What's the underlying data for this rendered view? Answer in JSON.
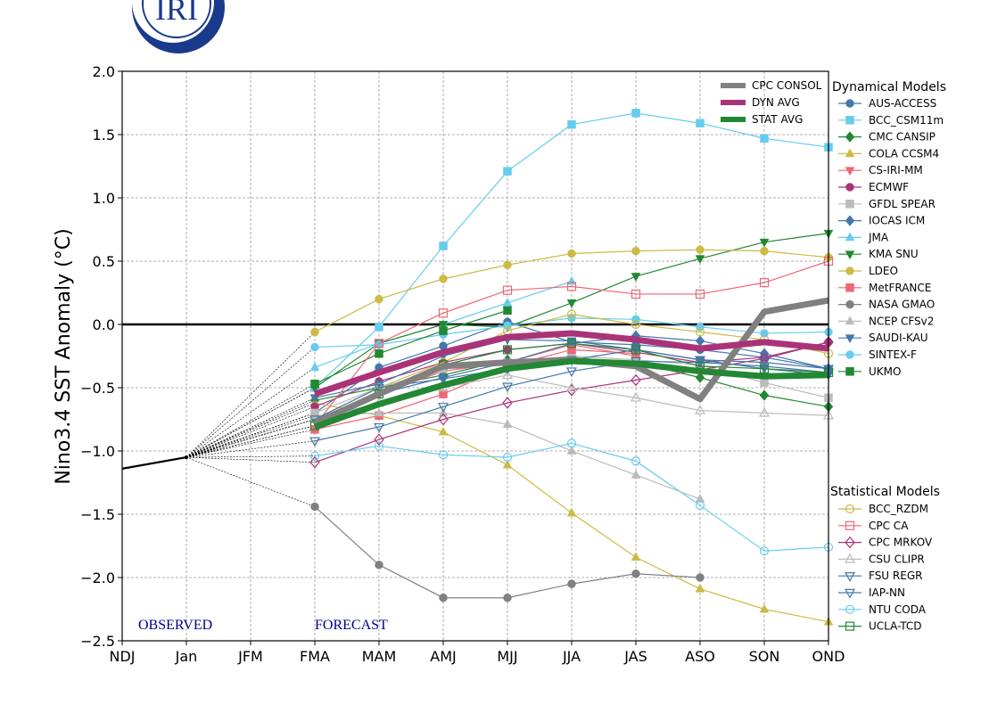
{
  "logo": {
    "text": "IRI",
    "color": "#1a3a8c"
  },
  "chart_data": {
    "type": "line",
    "ylabel": "Nino3.4 SST Anomaly (°C)",
    "xlabel": "",
    "categories": [
      "NDJ",
      "Jan",
      "JFM",
      "FMA",
      "MAM",
      "AMJ",
      "MJJ",
      "JJA",
      "JAS",
      "ASO",
      "SON",
      "OND"
    ],
    "ylim": [
      -2.5,
      2.0
    ],
    "yticks": [
      2.0,
      1.5,
      1.0,
      0.5,
      0.0,
      -0.5,
      -1.0,
      -1.5,
      -2.0,
      -2.5
    ],
    "ytick_labels": [
      "2.0",
      "1.5",
      "1.0",
      "0.5",
      "0.0",
      "−0.5",
      "−1.0",
      "−1.5",
      "−2.0",
      "−2.5"
    ],
    "grid": true,
    "annotations": {
      "observed": "OBSERVED",
      "forecast": "FORECAST"
    },
    "observed": {
      "categories": [
        "NDJ",
        "Jan"
      ],
      "values": [
        -1.14,
        -1.05
      ],
      "color": "#000000"
    },
    "forecast_start": "FMA",
    "averages_legend_placement": "top-right",
    "averages": [
      {
        "name": "CPC CONSOL",
        "color": "#808080",
        "values": [
          -0.78,
          -0.55,
          -0.33,
          -0.3,
          -0.28,
          -0.33,
          -0.59,
          0.1,
          0.19
        ]
      },
      {
        "name": "DYN AVG",
        "color": "#aa3377",
        "values": [
          -0.55,
          -0.38,
          -0.22,
          -0.1,
          -0.07,
          -0.12,
          -0.19,
          -0.14,
          -0.19
        ]
      },
      {
        "name": "STAT AVG",
        "color": "#228833",
        "values": [
          -0.81,
          -0.63,
          -0.48,
          -0.35,
          -0.29,
          -0.31,
          -0.37,
          -0.41,
          -0.4
        ]
      }
    ],
    "dynamical_title": "Dynamical Models",
    "dynamical": [
      {
        "name": "AUS-ACCESS",
        "color": "#4477aa",
        "marker": "circle",
        "filled": true,
        "values": [
          -0.7,
          -0.34,
          -0.17,
          0.02,
          -0.14,
          -0.16,
          -0.2,
          -0.26,
          -0.35
        ]
      },
      {
        "name": "BCC_CSM11m",
        "color": "#66ccee",
        "marker": "square",
        "filled": true,
        "values": [
          -0.5,
          -0.02,
          0.62,
          1.21,
          1.58,
          1.67,
          1.59,
          1.47,
          1.4
        ]
      },
      {
        "name": "CMC CANSIP",
        "color": "#228833",
        "marker": "diamond",
        "filled": true,
        "values": [
          -0.6,
          -0.5,
          -0.4,
          -0.28,
          -0.27,
          -0.3,
          -0.42,
          -0.56,
          -0.65
        ]
      },
      {
        "name": "COLA CCSM4",
        "color": "#ccbb44",
        "marker": "triangle-up",
        "filled": true,
        "values": [
          -0.62,
          -0.72,
          -0.85,
          -1.11,
          -1.49,
          -1.84,
          -2.09,
          -2.25,
          -2.35
        ]
      },
      {
        "name": "CS-IRI-MM",
        "color": "#ee6677",
        "marker": "triangle-down",
        "filled": true,
        "values": [
          -0.75,
          -0.55,
          -0.37,
          -0.3,
          -0.16,
          -0.25
        ]
      },
      {
        "name": "ECMWF",
        "color": "#aa3377",
        "marker": "circle",
        "filled": true,
        "values": [
          -0.65,
          -0.45,
          -0.3,
          -0.2,
          -0.15,
          -0.22,
          -0.3,
          -0.26,
          -0.14
        ]
      },
      {
        "name": "GFDL SPEAR",
        "color": "#bbbbbb",
        "marker": "square",
        "filled": true,
        "values": [
          -0.7,
          -0.5,
          -0.35,
          -0.3,
          -0.25,
          -0.28,
          -0.32,
          -0.46,
          -0.58
        ]
      },
      {
        "name": "IOCAS ICM",
        "color": "#4477aa",
        "marker": "diamond",
        "filled": true,
        "values": [
          -0.75,
          -0.55,
          -0.42,
          -0.3,
          -0.15,
          -0.09,
          -0.13,
          -0.23,
          -0.35
        ]
      },
      {
        "name": "JMA",
        "color": "#66ccee",
        "marker": "triangle-up",
        "filled": true,
        "values": [
          -0.34,
          -0.15,
          0.0,
          0.17,
          0.34
        ]
      },
      {
        "name": "KMA SNU",
        "color": "#228833",
        "marker": "triangle-down",
        "filled": true,
        "values": [
          -0.5,
          -0.15,
          0.0,
          -0.02,
          0.17,
          0.38,
          0.52,
          0.65,
          0.72
        ]
      },
      {
        "name": "LDEO",
        "color": "#ccbb44",
        "marker": "circle",
        "filled": true,
        "values": [
          -0.06,
          0.2,
          0.36,
          0.47,
          0.56,
          0.58,
          0.59,
          0.58,
          0.53
        ]
      },
      {
        "name": "MetFRANCE",
        "color": "#ee6677",
        "marker": "square",
        "filled": true,
        "values": [
          -0.83,
          -0.72,
          -0.55,
          -0.33,
          -0.2,
          -0.23
        ]
      },
      {
        "name": "NASA GMAO",
        "color": "#808080",
        "marker": "circle",
        "filled": true,
        "values": [
          -1.44,
          -1.9,
          -2.16,
          -2.16,
          -2.05,
          -1.97,
          -2.0
        ]
      },
      {
        "name": "NCEP CFSv2",
        "color": "#bbbbbb",
        "marker": "triangle-up",
        "filled": true,
        "values": [
          -0.72,
          -0.7,
          -0.7,
          -0.79,
          -1.0,
          -1.19,
          -1.38
        ]
      },
      {
        "name": "SAUDI-KAU",
        "color": "#4477aa",
        "marker": "triangle-down",
        "filled": true,
        "values": [
          -0.58,
          -0.47,
          -0.25,
          -0.12,
          -0.13,
          -0.2,
          -0.28,
          -0.35,
          -0.4
        ]
      },
      {
        "name": "SINTEX-F",
        "color": "#66ccee",
        "marker": "circle",
        "filled": true,
        "values": [
          -0.18,
          -0.16,
          -0.08,
          -0.01,
          0.05,
          0.04,
          -0.02,
          -0.07,
          -0.06
        ]
      },
      {
        "name": "UKMO",
        "color": "#228833",
        "marker": "square",
        "filled": true,
        "values": [
          -0.47,
          -0.23,
          -0.05,
          0.11
        ]
      }
    ],
    "statistical_title": "Statistical Models",
    "statistical": [
      {
        "name": "BCC_RZDM",
        "color": "#ccbb44",
        "marker": "circle",
        "filled": false,
        "values": [
          -0.75,
          -0.5,
          -0.3,
          -0.05,
          0.08,
          0.0,
          -0.06,
          -0.12,
          -0.23
        ]
      },
      {
        "name": "CPC CA",
        "color": "#ee6677",
        "marker": "square",
        "filled": false,
        "values": [
          -0.8,
          -0.15,
          0.09,
          0.27,
          0.3,
          0.24,
          0.24,
          0.33,
          0.5
        ]
      },
      {
        "name": "CPC MRKOV",
        "color": "#aa3377",
        "marker": "diamond",
        "filled": false,
        "values": [
          -1.09,
          -0.91,
          -0.75,
          -0.62,
          -0.52,
          -0.44,
          -0.36,
          -0.27,
          -0.14
        ]
      },
      {
        "name": "CSU CLIPR",
        "color": "#bbbbbb",
        "marker": "triangle-up",
        "filled": false,
        "values": [
          -0.75,
          -0.62,
          -0.5,
          -0.4,
          -0.5,
          -0.58,
          -0.68,
          -0.7,
          -0.72
        ]
      },
      {
        "name": "FSU REGR",
        "color": "#4477aa",
        "marker": "triangle-down",
        "filled": false,
        "values": [
          -0.92,
          -0.81,
          -0.65,
          -0.49,
          -0.37,
          -0.29,
          -0.3,
          -0.33,
          -0.38
        ]
      },
      {
        "name": "IAP-NN",
        "color": "#4477aa",
        "marker": "triangle-down",
        "filled": false,
        "values": [
          -0.75,
          -0.5,
          -0.43,
          -0.35,
          -0.28,
          -0.2,
          -0.28,
          -0.3,
          -0.35
        ]
      },
      {
        "name": "NTU CODA",
        "color": "#66ccee",
        "marker": "circle",
        "filled": false,
        "values": [
          -1.04,
          -0.96,
          -1.03,
          -1.05,
          -0.94,
          -1.08,
          -1.43,
          -1.79,
          -1.76
        ]
      },
      {
        "name": "UCLA-TCD",
        "color": "#228833",
        "marker": "square",
        "filled": false,
        "values": [
          -0.8,
          -0.55,
          -0.32,
          -0.2,
          -0.15,
          -0.2,
          -0.33,
          -0.35,
          -0.38
        ]
      }
    ]
  }
}
